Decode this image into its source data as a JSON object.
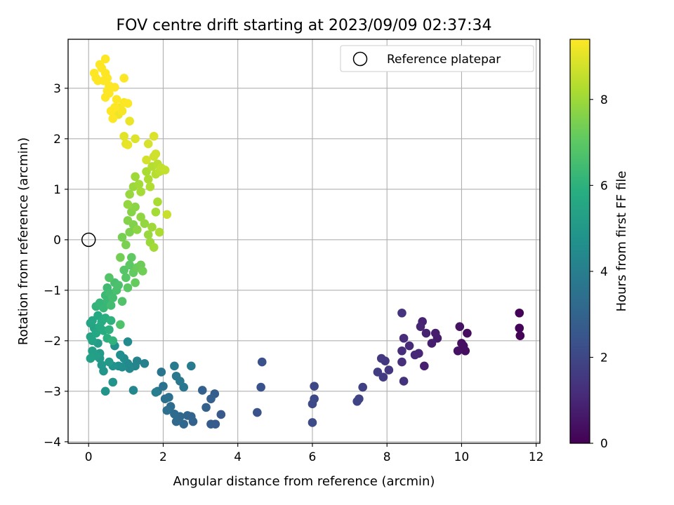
{
  "chart_data": {
    "type": "scatter",
    "title": "FOV centre drift starting at 2023/09/09 02:37:34",
    "xlabel": "Angular distance from reference (arcmin)",
    "ylabel": "Rotation from reference (arcmin)",
    "xlim": [
      -0.55,
      12.1
    ],
    "ylim": [
      -4.03,
      3.97
    ],
    "xticks": [
      0,
      2,
      4,
      6,
      8,
      10,
      12
    ],
    "yticks": [
      -4,
      -3,
      -2,
      -1,
      0,
      1,
      2,
      3
    ],
    "grid": true,
    "legend": {
      "position": "top-right",
      "label": "Reference platepar"
    },
    "reference_point": {
      "x": 0,
      "y": 0
    },
    "colorbar": {
      "label": "Hours from first FF file",
      "colormap": "viridis",
      "range": [
        0,
        9.4
      ],
      "ticks": [
        0,
        2,
        4,
        6,
        8
      ]
    },
    "points": [
      [
        11.55,
        -1.45,
        0.05
      ],
      [
        11.55,
        -1.75,
        0.08
      ],
      [
        11.57,
        -1.9,
        0.1
      ],
      [
        10.15,
        -1.85,
        0.35
      ],
      [
        10.1,
        -2.2,
        0.38
      ],
      [
        10.0,
        -2.05,
        0.4
      ],
      [
        9.9,
        -2.2,
        0.45
      ],
      [
        9.95,
        -1.72,
        0.5
      ],
      [
        10.05,
        -2.1,
        0.42
      ],
      [
        9.35,
        -1.95,
        0.7
      ],
      [
        9.3,
        -1.85,
        0.75
      ],
      [
        9.2,
        -2.05,
        0.8
      ],
      [
        9.0,
        -2.5,
        0.85
      ],
      [
        9.05,
        -1.85,
        0.9
      ],
      [
        8.95,
        -1.62,
        0.95
      ],
      [
        8.9,
        -1.72,
        1.0
      ],
      [
        8.85,
        -2.25,
        1.05
      ],
      [
        8.75,
        -2.28,
        1.1
      ],
      [
        8.6,
        -2.1,
        1.15
      ],
      [
        8.45,
        -1.95,
        1.2
      ],
      [
        8.4,
        -2.2,
        1.25
      ],
      [
        8.4,
        -2.42,
        1.3
      ],
      [
        8.45,
        -2.8,
        1.35
      ],
      [
        8.4,
        -1.45,
        1.4
      ],
      [
        8.05,
        -2.58,
        1.5
      ],
      [
        7.95,
        -2.4,
        1.55
      ],
      [
        7.85,
        -2.35,
        1.6
      ],
      [
        7.9,
        -2.72,
        1.65
      ],
      [
        7.75,
        -2.62,
        1.7
      ],
      [
        7.35,
        -2.92,
        1.85
      ],
      [
        7.25,
        -3.15,
        1.9
      ],
      [
        7.2,
        -3.2,
        1.95
      ],
      [
        6.05,
        -2.9,
        2.05
      ],
      [
        6.05,
        -3.15,
        2.1
      ],
      [
        6.0,
        -3.25,
        2.15
      ],
      [
        6.0,
        -3.62,
        2.2
      ],
      [
        4.65,
        -2.42,
        2.35
      ],
      [
        4.62,
        -2.92,
        2.4
      ],
      [
        4.52,
        -3.42,
        2.45
      ],
      [
        3.55,
        -3.46,
        2.65
      ],
      [
        3.4,
        -3.65,
        2.7
      ],
      [
        3.28,
        -3.65,
        2.75
      ],
      [
        3.38,
        -3.05,
        2.8
      ],
      [
        3.28,
        -3.15,
        2.85
      ],
      [
        3.15,
        -3.32,
        2.9
      ],
      [
        3.05,
        -2.98,
        2.95
      ],
      [
        2.8,
        -3.6,
        3.0
      ],
      [
        2.75,
        -3.5,
        3.05
      ],
      [
        2.65,
        -3.48,
        3.1
      ],
      [
        2.55,
        -3.65,
        3.15
      ],
      [
        2.45,
        -3.5,
        3.2
      ],
      [
        2.35,
        -3.6,
        3.25
      ],
      [
        2.3,
        -3.45,
        3.3
      ],
      [
        2.2,
        -3.3,
        3.35
      ],
      [
        2.1,
        -3.38,
        3.4
      ],
      [
        2.15,
        -3.12,
        3.45
      ],
      [
        2.05,
        -3.15,
        3.5
      ],
      [
        2.0,
        -2.9,
        3.55
      ],
      [
        1.85,
        -3.0,
        3.6
      ],
      [
        1.95,
        -2.62,
        3.65
      ],
      [
        2.55,
        -2.92,
        3.7
      ],
      [
        2.45,
        -2.8,
        3.75
      ],
      [
        2.35,
        -2.7,
        3.8
      ],
      [
        2.3,
        -2.5,
        3.85
      ],
      [
        2.75,
        -2.5,
        3.9
      ],
      [
        1.8,
        -3.02,
        4.0
      ],
      [
        1.5,
        -2.45,
        4.1
      ],
      [
        1.3,
        -2.4,
        4.2
      ],
      [
        1.25,
        -2.5,
        4.3
      ],
      [
        1.2,
        -2.98,
        4.35
      ],
      [
        1.1,
        -2.55,
        4.4
      ],
      [
        1.05,
        -2.45,
        4.45
      ],
      [
        1.05,
        -2.02,
        4.5
      ],
      [
        0.95,
        -2.35,
        4.55
      ],
      [
        0.9,
        -2.52,
        4.6
      ],
      [
        0.85,
        -2.28,
        4.65
      ],
      [
        0.8,
        -2.5,
        4.7
      ],
      [
        0.7,
        -2.1,
        4.75
      ],
      [
        0.65,
        -2.5,
        4.8
      ],
      [
        0.65,
        -2.82,
        4.85
      ],
      [
        0.45,
        -3.0,
        4.9
      ],
      [
        0.4,
        -2.6,
        4.95
      ],
      [
        0.35,
        -2.48,
        5.0
      ],
      [
        0.55,
        -2.42,
        5.05
      ],
      [
        0.3,
        -2.35,
        5.1
      ],
      [
        0.3,
        -2.25,
        5.15
      ],
      [
        0.25,
        -2.05,
        5.2
      ],
      [
        0.2,
        -2.3,
        5.25
      ],
      [
        0.1,
        -2.2,
        5.3
      ],
      [
        0.05,
        -2.35,
        5.35
      ],
      [
        0.1,
        -2.0,
        5.4
      ],
      [
        0.05,
        -1.92,
        5.45
      ],
      [
        0.15,
        -1.75,
        5.5
      ],
      [
        0.05,
        -1.65,
        5.55
      ],
      [
        0.1,
        -1.6,
        5.6
      ],
      [
        0.2,
        -1.85,
        5.65
      ],
      [
        0.25,
        -1.5,
        5.7
      ],
      [
        0.3,
        -1.72,
        5.75
      ],
      [
        0.35,
        -1.62,
        5.8
      ],
      [
        0.4,
        -1.8,
        5.85
      ],
      [
        0.45,
        -1.55,
        5.9
      ],
      [
        0.5,
        -1.95,
        5.95
      ],
      [
        0.55,
        -1.78,
        6.0
      ],
      [
        0.6,
        -1.6,
        6.05
      ],
      [
        0.65,
        -2.0,
        6.1
      ],
      [
        0.2,
        -1.32,
        6.15
      ],
      [
        0.3,
        -1.25,
        6.2
      ],
      [
        0.4,
        -1.35,
        6.25
      ],
      [
        0.5,
        -1.22,
        6.3
      ],
      [
        0.45,
        -1.1,
        6.35
      ],
      [
        0.5,
        -0.95,
        6.4
      ],
      [
        0.55,
        -1.05,
        6.45
      ],
      [
        0.6,
        -1.3,
        6.5
      ],
      [
        0.65,
        -1.15,
        6.55
      ],
      [
        0.7,
        -0.85,
        6.6
      ],
      [
        0.75,
        -1.0,
        6.65
      ],
      [
        0.8,
        -0.9,
        6.7
      ],
      [
        0.85,
        -1.68,
        6.75
      ],
      [
        0.9,
        -1.22,
        6.8
      ],
      [
        0.55,
        -0.75,
        6.85
      ],
      [
        0.95,
        -0.6,
        6.9
      ],
      [
        1.0,
        -0.75,
        6.95
      ],
      [
        1.05,
        -0.95,
        7.0
      ],
      [
        1.1,
        -0.5,
        7.05
      ],
      [
        1.15,
        -0.35,
        7.1
      ],
      [
        1.2,
        -0.65,
        7.15
      ],
      [
        1.25,
        -0.85,
        7.2
      ],
      [
        1.3,
        -0.55,
        7.25
      ],
      [
        1.4,
        -0.5,
        7.3
      ],
      [
        1.45,
        -0.62,
        7.35
      ],
      [
        0.85,
        -0.35,
        7.4
      ],
      [
        0.9,
        0.05,
        7.45
      ],
      [
        1.0,
        -0.1,
        7.5
      ],
      [
        1.1,
        0.15,
        7.55
      ],
      [
        1.2,
        0.3,
        7.6
      ],
      [
        1.05,
        0.38,
        7.65
      ],
      [
        1.15,
        0.55,
        7.7
      ],
      [
        1.25,
        0.65,
        7.75
      ],
      [
        1.3,
        0.2,
        7.8
      ],
      [
        1.4,
        0.45,
        7.85
      ],
      [
        1.5,
        0.32,
        7.9
      ],
      [
        1.6,
        0.1,
        7.95
      ],
      [
        1.65,
        -0.05,
        8.0
      ],
      [
        1.7,
        0.25,
        8.05
      ],
      [
        1.75,
        -0.15,
        8.1
      ],
      [
        1.8,
        0.55,
        8.15
      ],
      [
        1.85,
        0.75,
        8.2
      ],
      [
        1.9,
        0.15,
        8.25
      ],
      [
        1.05,
        0.7,
        7.9
      ],
      [
        1.1,
        0.9,
        7.95
      ],
      [
        1.2,
        1.05,
        8.0
      ],
      [
        1.25,
        1.25,
        8.05
      ],
      [
        1.35,
        1.1,
        8.1
      ],
      [
        1.4,
        0.95,
        8.15
      ],
      [
        1.55,
        1.35,
        8.2
      ],
      [
        1.6,
        1.2,
        8.25
      ],
      [
        1.65,
        1.05,
        8.3
      ],
      [
        1.7,
        1.45,
        8.35
      ],
      [
        1.8,
        1.3,
        8.4
      ],
      [
        1.85,
        1.5,
        8.45
      ],
      [
        1.9,
        1.35,
        8.5
      ],
      [
        1.95,
        1.42,
        8.55
      ],
      [
        2.05,
        1.38,
        8.6
      ],
      [
        2.1,
        0.5,
        8.65
      ],
      [
        1.75,
        1.65,
        8.7
      ],
      [
        1.8,
        1.7,
        8.75
      ],
      [
        1.55,
        1.58,
        8.8
      ],
      [
        1.6,
        1.9,
        8.85
      ],
      [
        1.75,
        2.05,
        8.9
      ],
      [
        1.25,
        2.0,
        8.95
      ],
      [
        0.95,
        2.05,
        9.0
      ],
      [
        1.0,
        1.9,
        9.05
      ],
      [
        1.05,
        1.88,
        9.1
      ],
      [
        1.1,
        2.35,
        9.15
      ],
      [
        0.8,
        2.48,
        9.2
      ],
      [
        0.85,
        2.62,
        9.25
      ],
      [
        0.9,
        2.55,
        9.3
      ],
      [
        0.95,
        2.72,
        9.35
      ],
      [
        1.05,
        2.7,
        9.38
      ],
      [
        0.75,
        2.78,
        9.4
      ],
      [
        0.65,
        2.4,
        9.4
      ],
      [
        0.6,
        2.55,
        9.4
      ],
      [
        0.7,
        2.62,
        9.4
      ],
      [
        0.45,
        2.82,
        9.4
      ],
      [
        0.5,
        2.95,
        9.4
      ],
      [
        0.55,
        3.05,
        9.4
      ],
      [
        0.7,
        3.02,
        9.4
      ],
      [
        0.4,
        3.15,
        9.4
      ],
      [
        0.45,
        3.3,
        9.4
      ],
      [
        0.5,
        3.2,
        9.4
      ],
      [
        0.35,
        3.4,
        9.4
      ],
      [
        0.3,
        3.47,
        9.4
      ],
      [
        0.45,
        3.58,
        9.4
      ],
      [
        0.2,
        3.2,
        9.4
      ],
      [
        0.25,
        3.15,
        9.4
      ],
      [
        0.15,
        3.3,
        9.4
      ],
      [
        0.95,
        3.2,
        9.4
      ],
      [
        0.55,
        2.9,
        9.4
      ]
    ]
  }
}
